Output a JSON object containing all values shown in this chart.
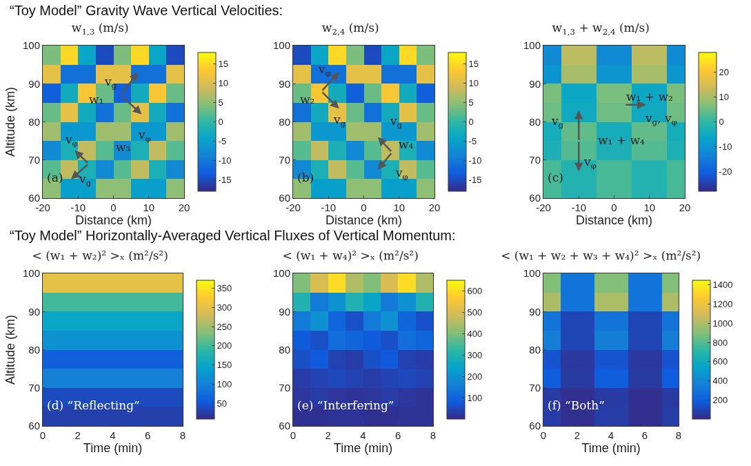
{
  "chart_data": [
    {
      "type": "heatmap",
      "title": "w$_{1,3}$ (m/s)",
      "xlabel": "Distance (km)",
      "ylabel": "Altitude (km)",
      "annotations": [
        "“Toy Model” Gravity Wave Vertical Velocities:",
        "w₁",
        "v$_{g}$",
        "v$_{φ}$",
        "w₃",
        "v$_{φ}$",
        "v$_{g}$",
        "(a)"
      ],
      "x": [
        -17.5,
        -12.5,
        -7.5,
        -2.5,
        2.5,
        7.5,
        12.5,
        17.5
      ],
      "y": [
        97.5,
        92.5,
        87.5,
        82.5,
        77.5,
        72.5,
        67.5,
        62.5
      ],
      "cells": [
        [
          4,
          15,
          -4,
          -15,
          4,
          15,
          -4,
          -15
        ],
        [
          11,
          -11,
          -11,
          11,
          11,
          -11,
          -11,
          11
        ],
        [
          -13,
          -3,
          13,
          3,
          -13,
          -3,
          13,
          3
        ],
        [
          3,
          11,
          -3,
          -11,
          3,
          11,
          -3,
          -11
        ],
        [
          6,
          -6,
          -6,
          6,
          6,
          -6,
          -6,
          6
        ],
        [
          -8,
          -2,
          8,
          2,
          -8,
          -2,
          8,
          2
        ],
        [
          2,
          8,
          -2,
          -8,
          2,
          8,
          -2,
          -8
        ],
        [
          5,
          -5,
          -5,
          5,
          5,
          -5,
          -5,
          5
        ]
      ],
      "clim": [
        -18,
        18
      ],
      "cticks": [
        -15,
        -10,
        -5,
        0,
        5,
        10,
        15
      ],
      "xlim": [
        -20,
        20
      ],
      "xticks": [
        -20,
        -10,
        0,
        10,
        20
      ],
      "ylim": [
        60,
        100
      ],
      "yticks": [
        60,
        70,
        80,
        90,
        100
      ]
    },
    {
      "type": "heatmap",
      "title": "w$_{2,4}$ (m/s)",
      "xlabel": "Distance (km)",
      "annotations": [
        "v$_{φ}$",
        "w₂",
        "v$_{g}$",
        "v$_{g}$",
        "w₄",
        "v$_{φ}$",
        "(b)"
      ],
      "x": [
        -17.5,
        -12.5,
        -7.5,
        -2.5,
        2.5,
        7.5,
        12.5,
        17.5
      ],
      "y": [
        97.5,
        92.5,
        87.5,
        82.5,
        77.5,
        72.5,
        67.5,
        62.5
      ],
      "cells": [
        [
          -15,
          -4,
          15,
          4,
          -15,
          -4,
          15,
          4
        ],
        [
          11,
          -11,
          -11,
          11,
          11,
          -11,
          -11,
          11
        ],
        [
          3,
          13,
          -3,
          -13,
          3,
          13,
          -3,
          -13
        ],
        [
          -11,
          -3,
          11,
          3,
          -11,
          -3,
          11,
          3
        ],
        [
          6,
          -6,
          -6,
          6,
          6,
          -6,
          -6,
          6
        ],
        [
          2,
          8,
          -2,
          -8,
          2,
          8,
          -2,
          -8
        ],
        [
          -8,
          -2,
          8,
          2,
          -8,
          -2,
          8,
          2
        ],
        [
          5,
          -5,
          -5,
          5,
          5,
          -5,
          -5,
          5
        ]
      ],
      "clim": [
        -18,
        18
      ],
      "cticks": [
        -15,
        -10,
        -5,
        0,
        5,
        10,
        15
      ],
      "xlim": [
        -20,
        20
      ],
      "xticks": [
        -20,
        -10,
        0,
        10,
        20
      ],
      "ylim": [
        60,
        100
      ],
      "yticks": [
        60,
        70,
        80,
        90,
        100
      ]
    },
    {
      "type": "heatmap",
      "title": "w$_{1,3}$ + w$_{2,4}$ (m/s)",
      "xlabel": "Distance (km)",
      "annotations": [
        "w₁ + w₂",
        "v$_{g}$, v$_{φ}$",
        "v$_{g}$",
        "w₁ + w₄",
        "v$_{φ}$",
        "(c)"
      ],
      "x": [
        -17.5,
        -12.5,
        -7.5,
        -2.5,
        2.5,
        7.5,
        12.5,
        17.5
      ],
      "y": [
        97.5,
        92.5,
        87.5,
        82.5,
        77.5,
        72.5,
        67.5,
        62.5
      ],
      "cells": [
        [
          -12,
          12,
          12,
          -12,
          -12,
          12,
          12,
          -12
        ],
        [
          -10,
          10,
          10,
          -10,
          -10,
          10,
          10,
          -10
        ],
        [
          6,
          -6,
          -6,
          6,
          6,
          -6,
          -6,
          6
        ],
        [
          5,
          -5,
          -5,
          5,
          5,
          -5,
          -5,
          5
        ],
        [
          -4,
          4,
          4,
          -4,
          -4,
          4,
          4,
          -4
        ],
        [
          -3,
          3,
          3,
          -3,
          -3,
          3,
          3,
          -3
        ],
        [
          2,
          -2,
          -2,
          2,
          2,
          -2,
          -2,
          2
        ],
        [
          2,
          -2,
          -2,
          2,
          2,
          -2,
          -2,
          2
        ]
      ],
      "clim": [
        -28,
        28
      ],
      "cticks": [
        -20,
        -10,
        0,
        10,
        20
      ],
      "xlim": [
        -20,
        20
      ],
      "xticks": [
        -20,
        -10,
        0,
        10,
        20
      ],
      "ylim": [
        60,
        100
      ],
      "yticks": [
        60,
        70,
        80,
        90,
        100
      ]
    },
    {
      "type": "heatmap",
      "title": "< (w₁ + w₂)² >ₓ (m²/s²)",
      "xlabel": "Time (min)",
      "ylabel": "Altitude (km)",
      "annotations": [
        "“Toy Model” Horizontally-Averaged Vertical Fluxes of Vertical Momentum:",
        "(d) “Reflecting”"
      ],
      "x": [
        0.5,
        1.5,
        2.5,
        3.5,
        4.5,
        5.5,
        6.5,
        7.5
      ],
      "y": [
        97.5,
        92.5,
        87.5,
        82.5,
        77.5,
        72.5,
        67.5,
        62.5
      ],
      "cells": [
        [
          300,
          300,
          300,
          300,
          300,
          300,
          300,
          300
        ],
        [
          200,
          200,
          200,
          200,
          200,
          200,
          200,
          200
        ],
        [
          150,
          150,
          150,
          150,
          150,
          150,
          150,
          150
        ],
        [
          120,
          120,
          120,
          120,
          120,
          120,
          120,
          120
        ],
        [
          60,
          60,
          60,
          60,
          60,
          60,
          60,
          60
        ],
        [
          100,
          100,
          100,
          100,
          100,
          100,
          100,
          100
        ],
        [
          40,
          40,
          40,
          40,
          40,
          40,
          40,
          40
        ],
        [
          30,
          30,
          30,
          30,
          30,
          30,
          30,
          30
        ]
      ],
      "clim": [
        10,
        370
      ],
      "cticks": [
        50,
        100,
        150,
        200,
        250,
        300,
        350
      ],
      "xlim": [
        0,
        8
      ],
      "xticks": [
        0,
        2,
        4,
        6,
        8
      ],
      "ylim": [
        60,
        100
      ],
      "yticks": [
        60,
        70,
        80,
        90,
        100
      ]
    },
    {
      "type": "heatmap",
      "title": "< (w₁ + w₄)² >ₓ (m²/s²)",
      "xlabel": "Time (min)",
      "annotations": [
        "(e) “Interfering”"
      ],
      "x": [
        0.5,
        1.5,
        2.5,
        3.5,
        4.5,
        5.5,
        6.5,
        7.5
      ],
      "y": [
        97.5,
        92.5,
        87.5,
        82.5,
        77.5,
        72.5,
        67.5,
        62.5
      ],
      "cells": [
        [
          400,
          500,
          600,
          450,
          400,
          500,
          600,
          450
        ],
        [
          300,
          150,
          200,
          300,
          250,
          150,
          200,
          300
        ],
        [
          150,
          200,
          100,
          60,
          150,
          200,
          100,
          60
        ],
        [
          80,
          60,
          120,
          100,
          80,
          60,
          120,
          100
        ],
        [
          60,
          80,
          40,
          30,
          60,
          80,
          40,
          30
        ],
        [
          30,
          40,
          50,
          40,
          30,
          40,
          50,
          40
        ],
        [
          20,
          30,
          20,
          15,
          20,
          30,
          20,
          15
        ],
        [
          10,
          10,
          15,
          15,
          10,
          10,
          15,
          15
        ]
      ],
      "clim": [
        0,
        650
      ],
      "cticks": [
        100,
        200,
        300,
        400,
        500,
        600
      ],
      "xlim": [
        0,
        8
      ],
      "xticks": [
        0,
        2,
        4,
        6,
        8
      ],
      "ylim": [
        60,
        100
      ],
      "yticks": [
        60,
        70,
        80,
        90,
        100
      ]
    },
    {
      "type": "heatmap",
      "title": "< (w₁ + w₂ + w₃ + w₄)² >ₓ (m²/s²)",
      "xlabel": "Time (min)",
      "annotations": [
        "(f) “Both”"
      ],
      "x": [
        0.5,
        1.5,
        2.5,
        3.5,
        4.5,
        5.5,
        6.5,
        7.5
      ],
      "y": [
        97.5,
        92.5,
        87.5,
        82.5,
        77.5,
        72.5,
        67.5,
        62.5
      ],
      "cells": [
        [
          900,
          300,
          300,
          900,
          900,
          300,
          300,
          900
        ],
        [
          1000,
          300,
          300,
          1000,
          1000,
          300,
          300,
          1000
        ],
        [
          300,
          100,
          100,
          300,
          300,
          100,
          100,
          300
        ],
        [
          350,
          100,
          100,
          350,
          350,
          100,
          100,
          350
        ],
        [
          150,
          50,
          50,
          150,
          150,
          50,
          50,
          150
        ],
        [
          180,
          60,
          60,
          180,
          180,
          60,
          60,
          180
        ],
        [
          60,
          20,
          20,
          60,
          60,
          20,
          20,
          60
        ],
        [
          70,
          20,
          20,
          70,
          70,
          20,
          20,
          70
        ]
      ],
      "clim": [
        0,
        1450
      ],
      "cticks": [
        200,
        400,
        600,
        800,
        1000,
        1200,
        1400
      ],
      "xlim": [
        0,
        8
      ],
      "xticks": [
        0,
        2,
        4,
        6,
        8
      ],
      "ylim": [
        60,
        100
      ],
      "yticks": [
        60,
        70,
        80,
        90,
        100
      ]
    }
  ]
}
